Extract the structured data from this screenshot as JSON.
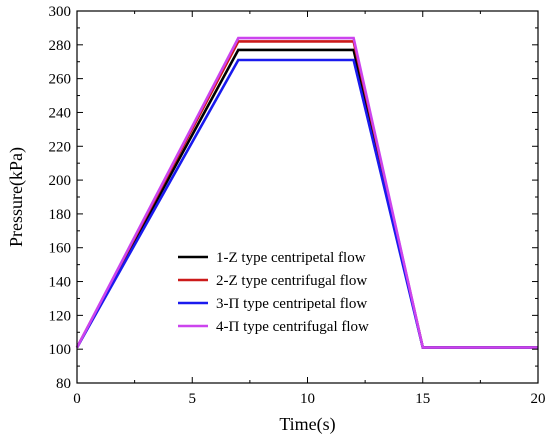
{
  "chart_data": {
    "type": "line",
    "xlabel": "Time(s)",
    "ylabel": "Pressure(kPa)",
    "xlim": [
      0,
      20
    ],
    "ylim": [
      80,
      300
    ],
    "x_ticks": [
      0,
      5,
      10,
      15,
      20
    ],
    "y_ticks": [
      80,
      100,
      120,
      140,
      160,
      180,
      200,
      220,
      240,
      260,
      280,
      300
    ],
    "grid": false,
    "legend_position": "lower-center",
    "series": [
      {
        "name": "1-Z type centripetal flow",
        "color": "#000000",
        "x": [
          0,
          7,
          12,
          15,
          20
        ],
        "y": [
          101,
          277,
          277,
          101,
          101
        ]
      },
      {
        "name": "2-Z type centrifugal flow",
        "color": "#cc1a1a",
        "x": [
          0,
          7,
          12,
          15,
          20
        ],
        "y": [
          101,
          282,
          282,
          101,
          101
        ]
      },
      {
        "name": "3-Π type centripetal flow",
        "color": "#1a1aee",
        "x": [
          0,
          7,
          12,
          15,
          20
        ],
        "y": [
          101,
          271,
          271,
          101,
          101
        ]
      },
      {
        "name": "4-Π type centrifugal flow",
        "color": "#cc44ee",
        "x": [
          0,
          7,
          12,
          15,
          20
        ],
        "y": [
          101,
          284,
          284,
          101,
          101
        ]
      }
    ]
  }
}
